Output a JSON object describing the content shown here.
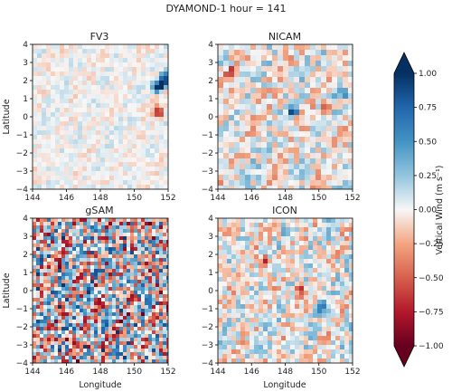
{
  "title": "DYAMOND-1 hour = 141",
  "colors": {
    "neg_end": "#67001f",
    "mid": "#f7f7f7",
    "pos_end": "#053061"
  },
  "chart_data": [
    {
      "type": "heatmap",
      "title": "FV3",
      "xlim": [
        144,
        152
      ],
      "ylim": [
        -4,
        4
      ],
      "xlabel": "",
      "ylabel": "Latitude",
      "xticks": [
        "144",
        "146",
        "148",
        "150",
        "152"
      ],
      "yticks": [
        "−4",
        "−3",
        "−2",
        "−1",
        "0",
        "1",
        "2",
        "3",
        "4"
      ]
    },
    {
      "type": "heatmap",
      "title": "NICAM",
      "xlim": [
        144,
        152
      ],
      "ylim": [
        -4,
        4
      ],
      "xlabel": "",
      "ylabel": "",
      "xticks": [
        "144",
        "146",
        "148",
        "150",
        "152"
      ],
      "yticks": [
        "−4",
        "−3",
        "−2",
        "−1",
        "0",
        "1",
        "2",
        "3",
        "4"
      ]
    },
    {
      "type": "heatmap",
      "title": "gSAM",
      "xlim": [
        144,
        152
      ],
      "ylim": [
        -4,
        4
      ],
      "xlabel": "Longitude",
      "ylabel": "Latitude",
      "xticks": [
        "144",
        "146",
        "148",
        "150",
        "152"
      ],
      "yticks": [
        "−4",
        "−3",
        "−2",
        "−1",
        "0",
        "1",
        "2",
        "3",
        "4"
      ]
    },
    {
      "type": "heatmap",
      "title": "ICON",
      "xlim": [
        144,
        152
      ],
      "ylim": [
        -4,
        4
      ],
      "xlabel": "Longitude",
      "ylabel": "",
      "xticks": [
        "144",
        "146",
        "148",
        "150",
        "152"
      ],
      "yticks": [
        "−4",
        "−3",
        "−2",
        "−1",
        "0",
        "1",
        "2",
        "3",
        "4"
      ]
    }
  ],
  "colorbar": {
    "label": "Vertical Wind (m s⁻¹)",
    "min": -1.0,
    "max": 1.0,
    "ticks": [
      "1.00",
      "0.75",
      "0.50",
      "0.25",
      "0.00",
      "−0.25",
      "−0.50",
      "−0.75",
      "−1.00"
    ],
    "extend": "both",
    "cmap": "RdBu"
  }
}
